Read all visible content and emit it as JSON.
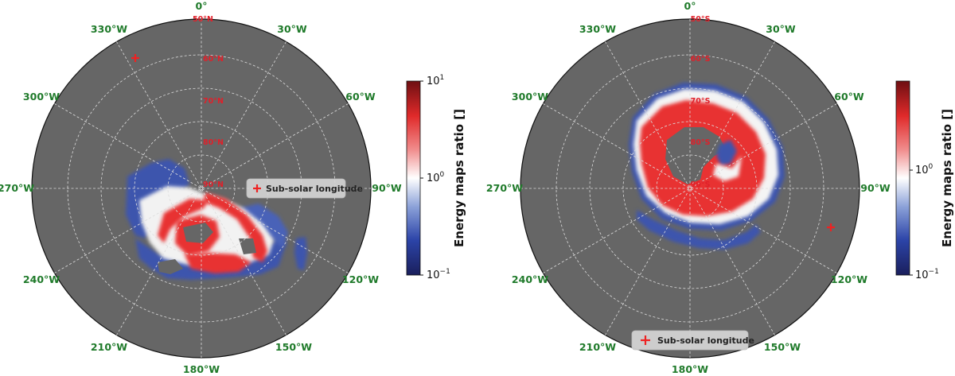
{
  "colors": {
    "background": "#666666",
    "longitude_label": "#1f7a2a",
    "latitude_label": "#e0202a",
    "marker": "#ee2222",
    "grid": "#dddddd",
    "colormap": [
      "#1a1f5c",
      "#2c44a8",
      "#8aa0d8",
      "#ffffff",
      "#f08a8a",
      "#e02a2a",
      "#6e0f12"
    ]
  },
  "chart_data": [
    {
      "type": "heatmap",
      "projection": "polar",
      "hemisphere": "north",
      "longitude_labels": [
        "0°",
        "30°W",
        "60°W",
        "90°W",
        "120°W",
        "150°W",
        "180°W",
        "210°W",
        "240°W",
        "270°W",
        "300°W",
        "330°W"
      ],
      "latitude_labels": [
        "50°N",
        "60°N",
        "70°N",
        "80°N",
        "90°N"
      ],
      "latitude_rings": [
        50,
        60,
        70,
        80,
        90
      ],
      "legend": {
        "label": "Sub-solar longitude",
        "marker": "+",
        "placement": "right"
      },
      "sub_solar_marker": {
        "longitude_west": 330,
        "latitude": 54
      },
      "grid": true,
      "colorbar": {
        "label": "Energy maps ratio []",
        "scale": "log",
        "range": [
          0.1,
          10
        ],
        "ticks": [
          {
            "base": "10",
            "exp": "1"
          },
          {
            "base": "10",
            "exp": "0"
          },
          {
            "base": "10",
            "exp": "−1"
          }
        ]
      }
    },
    {
      "type": "heatmap",
      "projection": "polar",
      "hemisphere": "south",
      "longitude_labels": [
        "0°",
        "30°W",
        "60°W",
        "90°W",
        "120°W",
        "150°W",
        "180°W",
        "210°W",
        "240°W",
        "270°W",
        "300°W",
        "330°W"
      ],
      "latitude_labels": [
        "50°S",
        "60°S",
        "70°S",
        "80°S",
        "90°S"
      ],
      "latitude_rings": [
        50,
        60,
        70,
        80,
        90
      ],
      "legend": {
        "label": "Sub-solar longitude",
        "marker": "+",
        "placement": "bottom"
      },
      "sub_solar_marker": {
        "longitude_west": 107,
        "latitude": 53
      },
      "grid": true,
      "colorbar": {
        "label": "Energy maps ratio []",
        "scale": "log",
        "range": [
          0.1,
          10
        ],
        "ticks": [
          {
            "base": "10",
            "exp": "0"
          },
          {
            "base": "10",
            "exp": "−1"
          }
        ]
      }
    }
  ]
}
